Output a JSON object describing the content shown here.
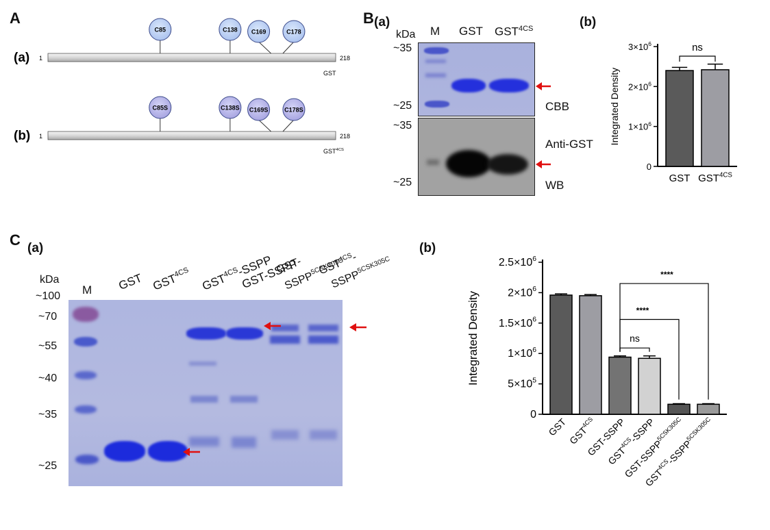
{
  "panels": {
    "A": {
      "letter": "A",
      "rows": [
        {
          "tag": "(a)",
          "start": "1",
          "end": "218",
          "name": "GST",
          "sites": [
            {
              "label": "C85",
              "pos": 85
            },
            {
              "label": "C138",
              "pos": 138
            },
            {
              "label": "C169",
              "pos": 169
            },
            {
              "label": "C178",
              "pos": 178
            }
          ]
        },
        {
          "tag": "(b)",
          "start": "1",
          "end": "218",
          "name": "GST",
          "name_sup": "4CS",
          "sites": [
            {
              "label": "C85S",
              "pos": 85
            },
            {
              "label": "C138S",
              "pos": 138
            },
            {
              "label": "C169S",
              "pos": 169
            },
            {
              "label": "C178S",
              "pos": 178
            }
          ]
        }
      ]
    },
    "B": {
      "letter": "B",
      "a": {
        "tag": "(a)",
        "kda": "kDa",
        "lanes": [
          "M",
          "GST",
          "GST"
        ],
        "lane3_sup": "4CS",
        "top_markers": [
          "~35",
          "~25"
        ],
        "bottom_markers": [
          "~35",
          "~25"
        ],
        "cbb": "CBB",
        "anti": "Anti-GST",
        "wb": "WB"
      },
      "b": {
        "tag": "(b)",
        "chart_data": {
          "type": "bar",
          "ylabel": "Integrated Density",
          "categories": [
            "GST",
            "GST4CS"
          ],
          "category_labels": [
            {
              "base": "GST",
              "sup": ""
            },
            {
              "base": "GST",
              "sup": "4CS"
            }
          ],
          "values": [
            2400000,
            2420000
          ],
          "errors": [
            80000,
            140000
          ],
          "ylim": [
            0,
            3000000
          ],
          "yticks": [
            {
              "v": 0,
              "base": "0",
              "sup": ""
            },
            {
              "v": 1000000,
              "base": "1×10",
              "sup": "6"
            },
            {
              "v": 2000000,
              "base": "2×10",
              "sup": "6"
            },
            {
              "v": 3000000,
              "base": "3×10",
              "sup": "6"
            }
          ],
          "colors": [
            "#5a5a5a",
            "#9d9da3"
          ],
          "significance": [
            {
              "from": 0,
              "to": 1,
              "label": "ns"
            }
          ]
        }
      }
    },
    "C": {
      "letter": "C",
      "a": {
        "tag": "(a)",
        "kda": "kDa",
        "markers": [
          "~100",
          "~70",
          "~55",
          "~40",
          "~35",
          "~25"
        ],
        "lane_m": "M",
        "lane_gst": "GST",
        "lane_gst4cs": "GST",
        "sup_4cs": "4CS",
        "lane3_pre": "GST",
        "lane3_post": "-SSPP",
        "lane4": "GST-SSPP",
        "lane5_l1": "GST-",
        "lane5_l2": "SSPP",
        "sup_mut": "5CSK305C",
        "lane6_l1": "GST",
        "lane6_l1b": "-",
        "lane6_l2": "SSPP"
      },
      "b": {
        "tag": "(b)",
        "chart_data": {
          "type": "bar",
          "ylabel": "Integrated Density",
          "categories": [
            "GST",
            "GST4CS",
            "GST-SSPP",
            "GST4CS-SSPP",
            "GST-SSPP5CSK305C",
            "GST4CS-SSPP5CSK305C"
          ],
          "category_labels": [
            {
              "parts": [
                "GST"
              ]
            },
            {
              "parts": [
                "GST",
                "^4CS"
              ]
            },
            {
              "parts": [
                "GST-SSPP"
              ]
            },
            {
              "parts": [
                "GST",
                "^4CS",
                "-SSPP"
              ]
            },
            {
              "parts": [
                "GST-SSPP",
                "^5CSK305C"
              ]
            },
            {
              "parts": [
                "GST",
                "^4CS",
                "-SSPP",
                "^5CSK305C"
              ]
            }
          ],
          "values": [
            1960000,
            1950000,
            940000,
            920000,
            165000,
            165000
          ],
          "errors": [
            20000,
            20000,
            20000,
            40000,
            10000,
            10000
          ],
          "ylim": [
            0,
            2500000
          ],
          "yticks": [
            {
              "v": 0,
              "base": "0",
              "sup": ""
            },
            {
              "v": 500000,
              "base": "5×10",
              "sup": "5"
            },
            {
              "v": 1000000,
              "base": "1×10",
              "sup": "6"
            },
            {
              "v": 1500000,
              "base": "1.5×10",
              "sup": "6"
            },
            {
              "v": 2000000,
              "base": "2×10",
              "sup": "6"
            },
            {
              "v": 2500000,
              "base": "2.5×10",
              "sup": "6"
            }
          ],
          "colors": [
            "#5a5a5a",
            "#9d9da3",
            "#737373",
            "#d2d2d2",
            "#555555",
            "#9a9a9a"
          ],
          "significance": [
            {
              "from": 2,
              "to": 3,
              "label": "ns"
            },
            {
              "from": 2,
              "to": 4,
              "label": "****"
            },
            {
              "from": 2,
              "to": 5,
              "label": "****"
            }
          ]
        }
      }
    }
  }
}
